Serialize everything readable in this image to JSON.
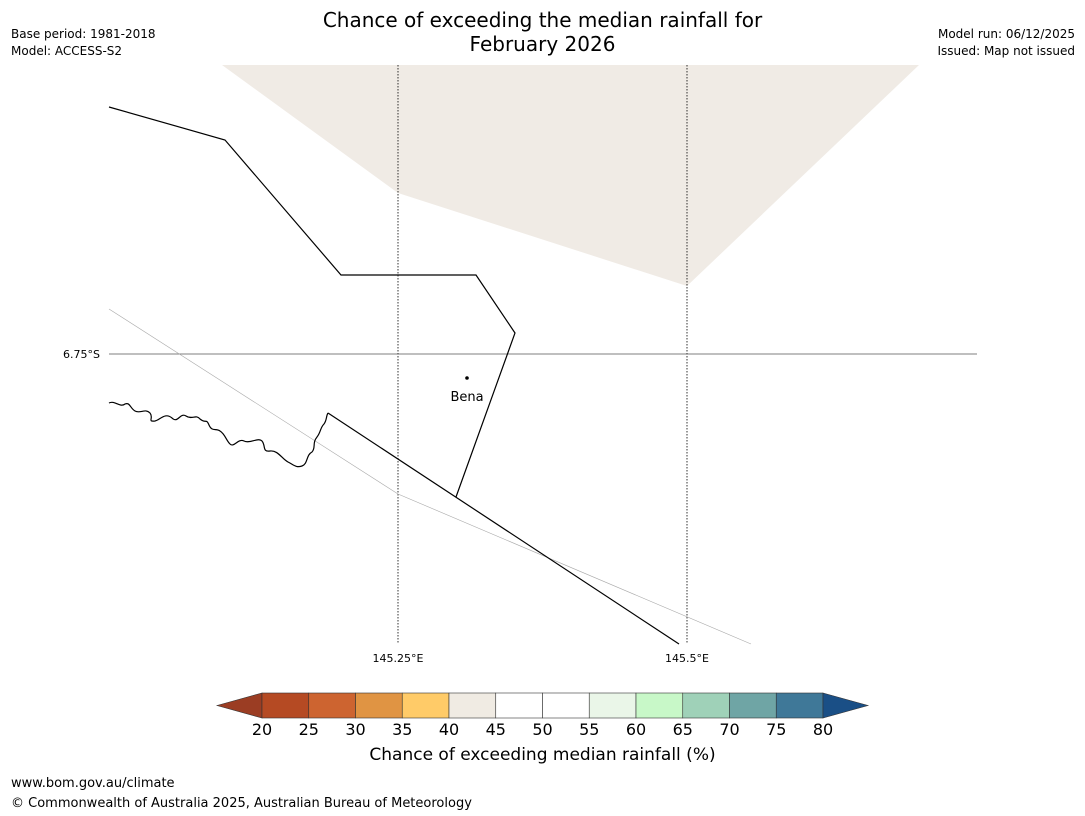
{
  "title": {
    "line1": "Chance of exceeding the median rainfall for",
    "line2": "February 2026"
  },
  "meta_left": {
    "base_period": "Base period: 1981-2018",
    "model": "Model: ACCESS-S2"
  },
  "meta_right": {
    "model_run": "Model run: 06/12/2025",
    "issued": "Issued: Map not issued"
  },
  "map": {
    "latitude_labels": [
      "6.75°S"
    ],
    "longitude_labels": [
      "145.25°E",
      "145.5°E"
    ],
    "places": [
      {
        "name": "Bena"
      }
    ]
  },
  "colorbar": {
    "title": "Chance of exceeding median rainfall (%)",
    "ticks": [
      "20",
      "25",
      "30",
      "35",
      "40",
      "45",
      "50",
      "55",
      "60",
      "65",
      "70",
      "75",
      "80"
    ],
    "colors": [
      "#9b3d23",
      "#b54a23",
      "#cd6430",
      "#e09443",
      "#ffcb68",
      "#f0ebe3",
      "#ffffff",
      "#ffffff",
      "#eaf6e8",
      "#c8f8c8",
      "#9fd1b8",
      "#6fa5a5",
      "#3f7898",
      "#1a4f86"
    ]
  },
  "fill_color": "#f0ebe5",
  "footer": {
    "url": "www.bom.gov.au/climate",
    "copyright": "© Commonwealth of Australia 2025, Australian Bureau of Meteorology"
  }
}
